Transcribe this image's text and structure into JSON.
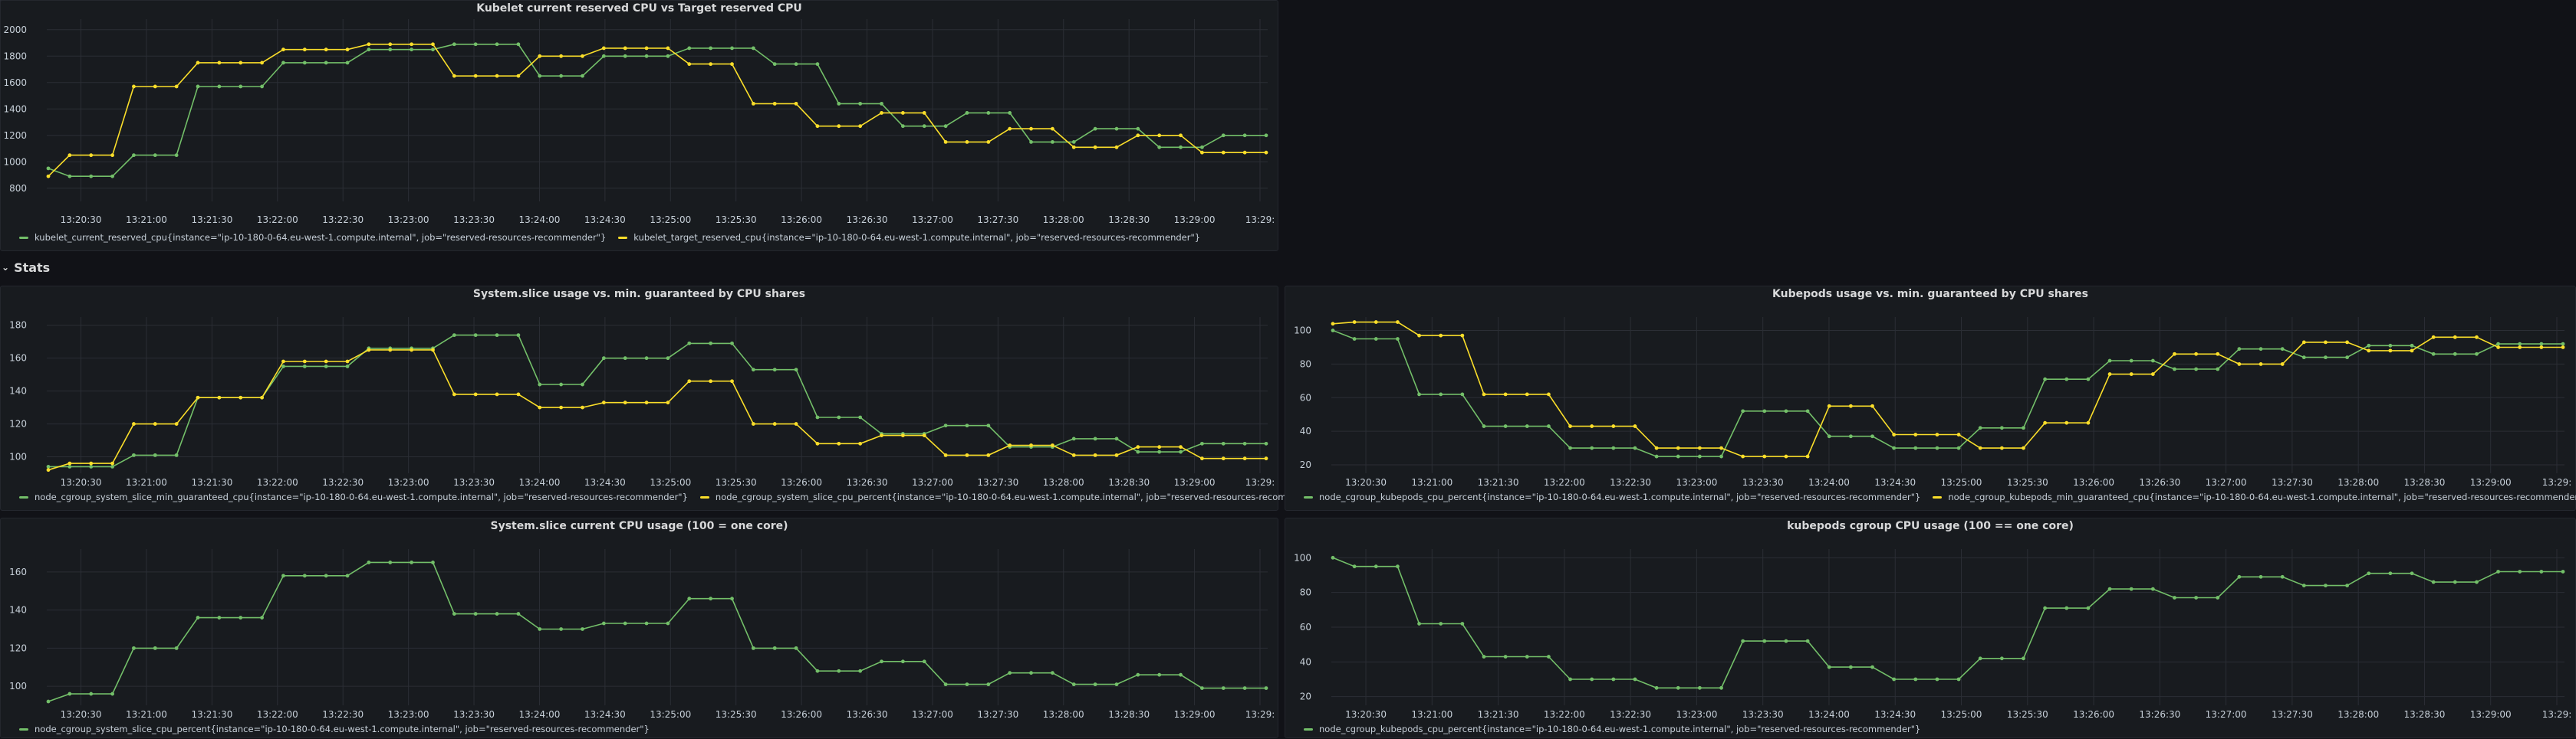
{
  "colors": {
    "green": "#73bf69",
    "yellow": "#fade2a",
    "grid": "#2b2e35"
  },
  "row_header": {
    "label": "Stats",
    "icon": "chevron-down-icon"
  },
  "time_ticks": [
    "13:20:30",
    "13:21:00",
    "13:21:30",
    "13:22:00",
    "13:22:30",
    "13:23:00",
    "13:23:30",
    "13:24:00",
    "13:24:30",
    "13:25:00",
    "13:25:30",
    "13:26:00",
    "13:26:30",
    "13:27:00",
    "13:27:30",
    "13:28:00",
    "13:28:30",
    "13:29:00",
    "13:29:"
  ],
  "chart_data": [
    {
      "type": "line",
      "title": "Kubelet current reserved CPU vs Target reserved CPU",
      "x_ticks": [
        "13:20:30",
        "13:21:00",
        "13:21:30",
        "13:22:00",
        "13:22:30",
        "13:23:00",
        "13:23:30",
        "13:24:00",
        "13:24:30",
        "13:25:00",
        "13:25:30",
        "13:26:00",
        "13:26:30",
        "13:27:00",
        "13:27:30",
        "13:28:00",
        "13:28:30",
        "13:29:00",
        "13:29:"
      ],
      "y_ticks": [
        800,
        1000,
        1200,
        1400,
        1600,
        1800,
        2000
      ],
      "ylim": [
        700,
        2080
      ],
      "legend_placement": "bottom-left",
      "series": [
        {
          "name": "kubelet_current_reserved_cpu{instance=\"ip-10-180-0-64.eu-west-1.compute.internal\", job=\"reserved-resources-recommender\"}",
          "color": "#73bf69",
          "values": [
            950,
            890,
            890,
            890,
            1050,
            1050,
            1050,
            1570,
            1570,
            1570,
            1570,
            1750,
            1750,
            1750,
            1750,
            1850,
            1850,
            1850,
            1850,
            1890,
            1890,
            1890,
            1890,
            1650,
            1650,
            1650,
            1800,
            1800,
            1800,
            1800,
            1860,
            1860,
            1860,
            1860,
            1740,
            1740,
            1740,
            1440,
            1440,
            1440,
            1270,
            1270,
            1270,
            1370,
            1370,
            1370,
            1150,
            1150,
            1150,
            1250,
            1250,
            1250,
            1110,
            1110,
            1110,
            1200,
            1200,
            1200
          ]
        },
        {
          "name": "kubelet_target_reserved_cpu{instance=\"ip-10-180-0-64.eu-west-1.compute.internal\", job=\"reserved-resources-recommender\"}",
          "color": "#fade2a",
          "values": [
            890,
            1050,
            1050,
            1050,
            1570,
            1570,
            1570,
            1750,
            1750,
            1750,
            1750,
            1850,
            1850,
            1850,
            1850,
            1890,
            1890,
            1890,
            1890,
            1650,
            1650,
            1650,
            1650,
            1800,
            1800,
            1800,
            1860,
            1860,
            1860,
            1860,
            1740,
            1740,
            1740,
            1440,
            1440,
            1440,
            1270,
            1270,
            1270,
            1370,
            1370,
            1370,
            1150,
            1150,
            1150,
            1250,
            1250,
            1250,
            1110,
            1110,
            1110,
            1200,
            1200,
            1200,
            1070,
            1070,
            1070,
            1070
          ]
        }
      ]
    },
    {
      "type": "line",
      "title": "System.slice usage vs. min. guaranteed by CPU shares",
      "x_ticks": [
        "13:20:30",
        "13:21:00",
        "13:21:30",
        "13:22:00",
        "13:22:30",
        "13:23:00",
        "13:23:30",
        "13:24:00",
        "13:24:30",
        "13:25:00",
        "13:25:30",
        "13:26:00",
        "13:26:30",
        "13:27:00",
        "13:27:30",
        "13:28:00",
        "13:28:30",
        "13:29:00",
        "13:29:"
      ],
      "y_ticks": [
        100,
        120,
        140,
        160,
        180
      ],
      "ylim": [
        90,
        185
      ],
      "legend_placement": "bottom-left",
      "series": [
        {
          "name": "node_cgroup_system_slice_min_guaranteed_cpu{instance=\"ip-10-180-0-64.eu-west-1.compute.internal\", job=\"reserved-resources-recommender\"}",
          "color": "#73bf69",
          "values": [
            94,
            94,
            94,
            94,
            101,
            101,
            101,
            136,
            136,
            136,
            136,
            155,
            155,
            155,
            155,
            166,
            166,
            166,
            166,
            174,
            174,
            174,
            174,
            144,
            144,
            144,
            160,
            160,
            160,
            160,
            169,
            169,
            169,
            153,
            153,
            153,
            124,
            124,
            124,
            114,
            114,
            114,
            119,
            119,
            119,
            106,
            106,
            106,
            111,
            111,
            111,
            103,
            103,
            103,
            108,
            108,
            108,
            108
          ]
        },
        {
          "name": "node_cgroup_system_slice_cpu_percent{instance=\"ip-10-180-0-64.eu-west-1.compute.internal\", job=\"reserved-resources-recommender\"}",
          "color": "#fade2a",
          "values": [
            92,
            96,
            96,
            96,
            120,
            120,
            120,
            136,
            136,
            136,
            136,
            158,
            158,
            158,
            158,
            165,
            165,
            165,
            165,
            138,
            138,
            138,
            138,
            130,
            130,
            130,
            133,
            133,
            133,
            133,
            146,
            146,
            146,
            120,
            120,
            120,
            108,
            108,
            108,
            113,
            113,
            113,
            101,
            101,
            101,
            107,
            107,
            107,
            101,
            101,
            101,
            106,
            106,
            106,
            99,
            99,
            99,
            99
          ]
        }
      ]
    },
    {
      "type": "line",
      "title": "Kubepods usage vs. min. guaranteed by CPU shares",
      "x_ticks": [
        "13:20:30",
        "13:21:00",
        "13:21:30",
        "13:22:00",
        "13:22:30",
        "13:23:00",
        "13:23:30",
        "13:24:00",
        "13:24:30",
        "13:25:00",
        "13:25:30",
        "13:26:00",
        "13:26:30",
        "13:27:00",
        "13:27:30",
        "13:28:00",
        "13:28:30",
        "13:29:00",
        "13:29:"
      ],
      "y_ticks": [
        20,
        40,
        60,
        80,
        100
      ],
      "ylim": [
        15,
        108
      ],
      "legend_placement": "bottom-left",
      "series": [
        {
          "name": "node_cgroup_kubepods_cpu_percent{instance=\"ip-10-180-0-64.eu-west-1.compute.internal\", job=\"reserved-resources-recommender\"}",
          "color": "#73bf69",
          "values": [
            100,
            95,
            95,
            95,
            62,
            62,
            62,
            43,
            43,
            43,
            43,
            30,
            30,
            30,
            30,
            25,
            25,
            25,
            25,
            52,
            52,
            52,
            52,
            37,
            37,
            37,
            30,
            30,
            30,
            30,
            42,
            42,
            42,
            71,
            71,
            71,
            82,
            82,
            82,
            77,
            77,
            77,
            89,
            89,
            89,
            84,
            84,
            84,
            91,
            91,
            91,
            86,
            86,
            86,
            92,
            92,
            92,
            92
          ]
        },
        {
          "name": "node_cgroup_kubepods_min_guaranteed_cpu{instance=\"ip-10-180-0-64.eu-west-1.compute.internal\", job=\"reserved-resources-recommender\"}",
          "color": "#fade2a",
          "values": [
            104,
            105,
            105,
            105,
            97,
            97,
            97,
            62,
            62,
            62,
            62,
            43,
            43,
            43,
            43,
            30,
            30,
            30,
            30,
            25,
            25,
            25,
            25,
            55,
            55,
            55,
            38,
            38,
            38,
            38,
            30,
            30,
            30,
            45,
            45,
            45,
            74,
            74,
            74,
            86,
            86,
            86,
            80,
            80,
            80,
            93,
            93,
            93,
            88,
            88,
            88,
            96,
            96,
            96,
            90,
            90,
            90,
            90
          ]
        }
      ]
    },
    {
      "type": "line",
      "title": "System.slice current CPU usage (100 = one core)",
      "x_ticks": [
        "13:20:30",
        "13:21:00",
        "13:21:30",
        "13:22:00",
        "13:22:30",
        "13:23:00",
        "13:23:30",
        "13:24:00",
        "13:24:30",
        "13:25:00",
        "13:25:30",
        "13:26:00",
        "13:26:30",
        "13:27:00",
        "13:27:30",
        "13:28:00",
        "13:28:30",
        "13:29:00",
        "13:29:"
      ],
      "y_ticks": [
        100,
        120,
        140,
        160
      ],
      "ylim": [
        90,
        172
      ],
      "legend_placement": "bottom-left",
      "series": [
        {
          "name": "node_cgroup_system_slice_cpu_percent{instance=\"ip-10-180-0-64.eu-west-1.compute.internal\", job=\"reserved-resources-recommender\"}",
          "color": "#73bf69",
          "values": [
            92,
            96,
            96,
            96,
            120,
            120,
            120,
            136,
            136,
            136,
            136,
            158,
            158,
            158,
            158,
            165,
            165,
            165,
            165,
            138,
            138,
            138,
            138,
            130,
            130,
            130,
            133,
            133,
            133,
            133,
            146,
            146,
            146,
            120,
            120,
            120,
            108,
            108,
            108,
            113,
            113,
            113,
            101,
            101,
            101,
            107,
            107,
            107,
            101,
            101,
            101,
            106,
            106,
            106,
            99,
            99,
            99,
            99
          ]
        }
      ]
    },
    {
      "type": "line",
      "title": "kubepods cgroup CPU usage (100 == one core)",
      "x_ticks": [
        "13:20:30",
        "13:21:00",
        "13:21:30",
        "13:22:00",
        "13:22:30",
        "13:23:00",
        "13:23:30",
        "13:24:00",
        "13:24:30",
        "13:25:00",
        "13:25:30",
        "13:26:00",
        "13:26:30",
        "13:27:00",
        "13:27:30",
        "13:28:00",
        "13:28:30",
        "13:29:00",
        "13:29:"
      ],
      "y_ticks": [
        20,
        40,
        60,
        80,
        100
      ],
      "ylim": [
        15,
        105
      ],
      "legend_placement": "bottom-left",
      "series": [
        {
          "name": "node_cgroup_kubepods_cpu_percent{instance=\"ip-10-180-0-64.eu-west-1.compute.internal\", job=\"reserved-resources-recommender\"}",
          "color": "#73bf69",
          "values": [
            100,
            95,
            95,
            95,
            62,
            62,
            62,
            43,
            43,
            43,
            43,
            30,
            30,
            30,
            30,
            25,
            25,
            25,
            25,
            52,
            52,
            52,
            52,
            37,
            37,
            37,
            30,
            30,
            30,
            30,
            42,
            42,
            42,
            71,
            71,
            71,
            82,
            82,
            82,
            77,
            77,
            77,
            89,
            89,
            89,
            84,
            84,
            84,
            91,
            91,
            91,
            86,
            86,
            86,
            92,
            92,
            92,
            92
          ]
        }
      ]
    }
  ]
}
